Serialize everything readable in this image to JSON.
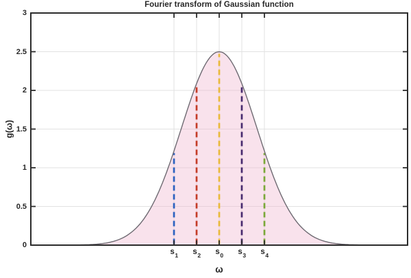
{
  "chart_data": {
    "type": "area",
    "title": "Fourier transform of Gaussian function",
    "xlabel": "ω",
    "ylabel": "g(ω)",
    "xlim": [
      -5,
      5
    ],
    "ylim": [
      0,
      3
    ],
    "yticks": [
      0,
      0.5,
      1,
      1.5,
      2,
      2.5,
      3
    ],
    "ytick_labels": [
      "0",
      "0.5",
      "1",
      "1.5",
      "2",
      "2.5",
      "3"
    ],
    "grid": true,
    "legend": null,
    "curve": {
      "formula": "g(omega) = amplitude * exp(-(omega - mean)^2 / (2 * sigma^2))",
      "amplitude": 2.5,
      "mean": 0,
      "sigma": 1,
      "peak_value": 2.5,
      "line_color": "#6e6a72",
      "fill_color": "#efb3cd",
      "fill_opacity": 0.38
    },
    "markers": [
      {
        "name": "s1",
        "base": "s",
        "sub": "1",
        "omega": -1.2,
        "g_value": 1.217,
        "color": "#2c62c0"
      },
      {
        "name": "s2",
        "base": "s",
        "sub": "2",
        "omega": -0.6,
        "g_value": 2.088,
        "color": "#c43b27"
      },
      {
        "name": "s0",
        "base": "s",
        "sub": "0",
        "omega": 0.0,
        "g_value": 2.5,
        "color": "#e9b93a"
      },
      {
        "name": "s3",
        "base": "s",
        "sub": "3",
        "omega": 0.6,
        "g_value": 2.088,
        "color": "#472a6e"
      },
      {
        "name": "s4",
        "base": "s",
        "sub": "4",
        "omega": 1.2,
        "g_value": 1.217,
        "color": "#7aa838"
      }
    ],
    "axis_color": "#2b2b2b",
    "grid_color": "#e2e2e2",
    "text_color": "#262626"
  }
}
